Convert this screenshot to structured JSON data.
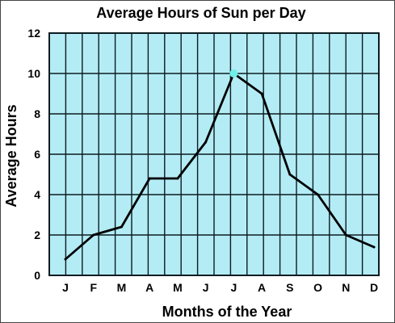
{
  "chart_data": {
    "type": "line",
    "title": "Average Hours of Sun per Day",
    "xlabel": "Months of the Year",
    "ylabel": "Average Hours",
    "categories": [
      "J",
      "F",
      "M",
      "A",
      "M",
      "J",
      "J",
      "A",
      "S",
      "O",
      "N",
      "D"
    ],
    "values": [
      0.8,
      2.0,
      2.4,
      4.8,
      4.8,
      6.6,
      10.0,
      9.0,
      5.0,
      4.0,
      2.0,
      1.4
    ],
    "y_ticks": [
      "0",
      "2",
      "4",
      "6",
      "8",
      "10",
      "12"
    ],
    "ylim": [
      0,
      12
    ],
    "grid": true,
    "highlighted_category_index": 6,
    "colors": {
      "plot_background": "#b4ecf5",
      "grid": "#0c1c22",
      "line": "#000000",
      "highlight_marker": "#6ef0e6"
    }
  }
}
